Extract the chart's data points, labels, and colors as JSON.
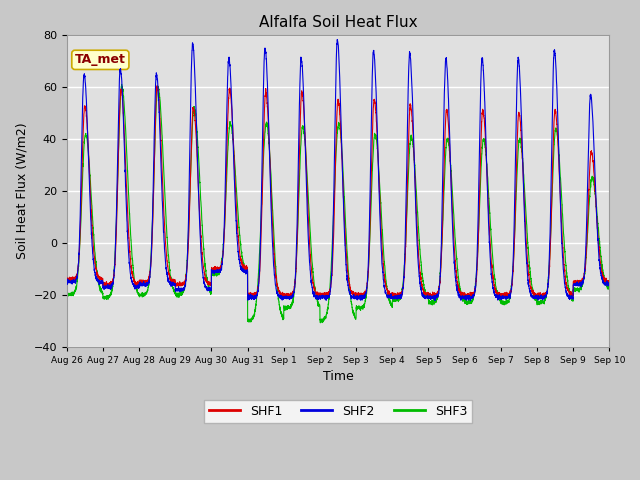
{
  "title": "Alfalfa Soil Heat Flux",
  "xlabel": "Time",
  "ylabel": "Soil Heat Flux (W/m2)",
  "ylim": [
    -40,
    80
  ],
  "fig_bg_color": "#c8c8c8",
  "plot_bg_color": "#e0e0e0",
  "annotation_text": "TA_met",
  "annotation_bg": "#ffffcc",
  "annotation_border": "#ccaa00",
  "shf1_color": "#dd0000",
  "shf2_color": "#0000dd",
  "shf3_color": "#00bb00",
  "legend_labels": [
    "SHF1",
    "SHF2",
    "SHF3"
  ],
  "tick_labels": [
    "Aug 26",
    "Aug 27",
    "Aug 28",
    "Aug 29",
    "Aug 30",
    "Aug 31",
    "Sep 1",
    "Sep 2",
    "Sep 3",
    "Sep 4",
    "Sep 5",
    "Sep 6",
    "Sep 7",
    "Sep 8",
    "Sep 9",
    "Sep 10"
  ],
  "days": 15,
  "points_per_day": 288,
  "shf1_peaks": [
    53,
    59,
    60,
    52,
    59,
    58,
    58,
    55,
    55,
    53,
    51,
    51,
    50,
    51,
    35
  ],
  "shf2_peaks": [
    65,
    67,
    65,
    77,
    71,
    75,
    71,
    78,
    74,
    73,
    71,
    71,
    71,
    74,
    57
  ],
  "shf3_peaks": [
    42,
    60,
    60,
    52,
    46,
    46,
    45,
    46,
    42,
    41,
    40,
    40,
    40,
    44,
    25
  ],
  "shf1_night": [
    -14,
    -16,
    -15,
    -16,
    -10,
    -20,
    -20,
    -20,
    -20,
    -20,
    -20,
    -20,
    -20,
    -20,
    -15
  ],
  "shf2_night": [
    -15,
    -17,
    -16,
    -18,
    -11,
    -21,
    -21,
    -21,
    -21,
    -21,
    -21,
    -21,
    -21,
    -21,
    -16
  ],
  "shf3_night": [
    -20,
    -21,
    -20,
    -20,
    -12,
    -25,
    -25,
    -30,
    -25,
    -22,
    -23,
    -23,
    -23,
    -23,
    -18
  ],
  "shf3_deep_trough_days": [
    5,
    7
  ],
  "shf3_deep_trough_val": [
    -30,
    -30
  ]
}
